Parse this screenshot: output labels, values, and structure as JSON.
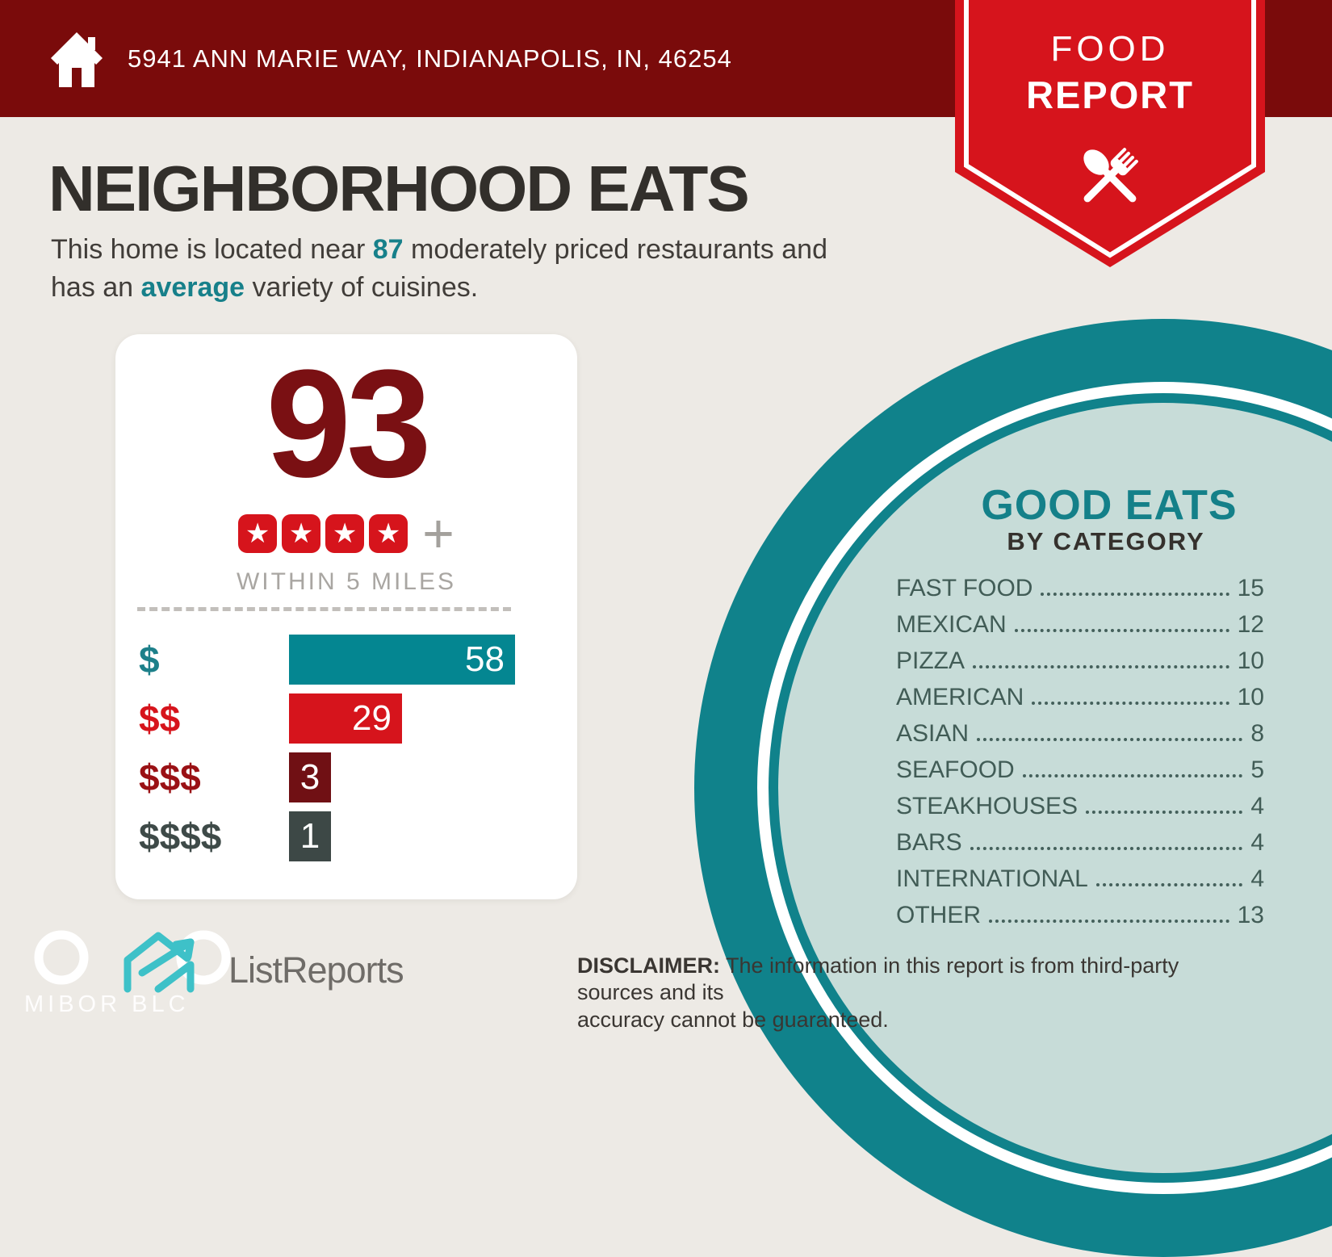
{
  "header": {
    "address": "5941 ANN MARIE WAY, INDIANAPOLIS, IN, 46254",
    "icon": "home-icon"
  },
  "ribbon": {
    "title_line1": "FOOD",
    "title_line2": "REPORT",
    "icon": "crossed-spoon-fork-icon",
    "color": "#d6141c"
  },
  "page": {
    "title": "NEIGHBORHOOD EATS",
    "subtitle_parts": {
      "pre": "This home is located near ",
      "count": "87",
      "mid": " moderately priced restaurants and",
      "line2_pre": "has an ",
      "highlight": "average",
      "post": " variety of cuisines."
    }
  },
  "scorecard": {
    "score": "93",
    "star_count": 4,
    "star_icon": "star-icon",
    "plus": "+",
    "caption": "WITHIN 5 MILES",
    "score_color": "#7a1013",
    "star_tile_color": "#d6141c"
  },
  "chart_data": [
    {
      "type": "bar",
      "orientation": "horizontal",
      "title": "WITHIN 5 MILES",
      "categories": [
        "$",
        "$$",
        "$$$",
        "$$$$"
      ],
      "values": [
        58,
        29,
        3,
        1
      ],
      "bar_colors": [
        "#048691",
        "#d6141c",
        "#701014",
        "#3d4846"
      ],
      "label_colors": [
        "#1d808a",
        "#d6141c",
        "#9a1115",
        "#3e4a48"
      ],
      "xlim": [
        0,
        58
      ],
      "value_labels": "inside-end",
      "grid": false
    },
    {
      "type": "table",
      "title": "GOOD EATS",
      "subtitle": "BY CATEGORY",
      "categories": [
        "FAST FOOD",
        "MEXICAN",
        "PIZZA",
        "AMERICAN",
        "ASIAN",
        "SEAFOOD",
        "STEAKHOUSES",
        "BARS",
        "INTERNATIONAL",
        "OTHER"
      ],
      "values": [
        15,
        12,
        10,
        10,
        8,
        5,
        4,
        4,
        4,
        13
      ],
      "text_color": "#415c56"
    }
  ],
  "footer": {
    "logo_text": "ListReports",
    "logo_icon": "house-logo-icon",
    "watermark": "MIBOR BLC",
    "disclaimer_label": "DISCLAIMER:",
    "disclaimer_line1": " The information in this report is from third-party sources and its",
    "disclaimer_line2": "accuracy cannot be guaranteed."
  },
  "colors": {
    "background": "#edeae5",
    "header_maroon": "#7a0b0b",
    "accent_teal": "#17808a",
    "circle_teal": "#10828b",
    "circle_inner": "#c7dcd8",
    "ribbon_red": "#d6141c",
    "score_maroon": "#7a1013",
    "slate": "#3d4846"
  }
}
